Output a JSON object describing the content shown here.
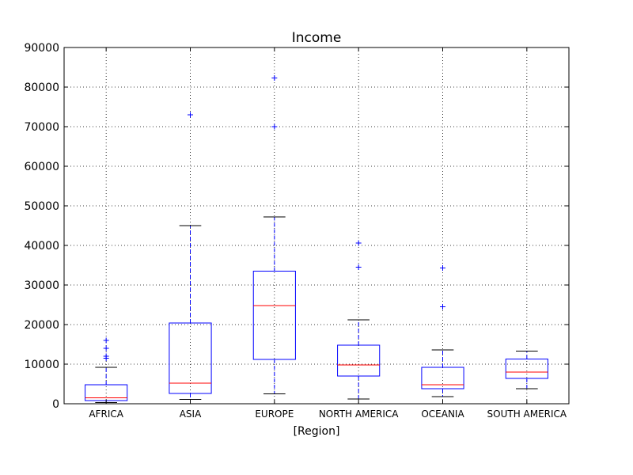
{
  "chart_data": {
    "type": "box",
    "title": "Income",
    "xlabel": "[Region]",
    "ylabel": "",
    "ylim": [
      0,
      90000
    ],
    "yticks": [
      0,
      10000,
      20000,
      30000,
      40000,
      50000,
      60000,
      70000,
      80000,
      90000
    ],
    "grid": true,
    "colors": {
      "box": "#0000ff",
      "median": "#ff0000",
      "whisker": "#0000ff",
      "cap": "#000000",
      "flier": "#0000ff",
      "grid": "#000000"
    },
    "categories": [
      "AFRICA",
      "ASIA",
      "EUROPE",
      "NORTH AMERICA",
      "OCEANIA",
      "SOUTH AMERICA"
    ],
    "boxes": [
      {
        "whislo": 300,
        "q1": 800,
        "med": 1500,
        "q3": 4800,
        "whishi": 9200,
        "fliers": [
          11500,
          12000,
          14000,
          16000
        ]
      },
      {
        "whislo": 1100,
        "q1": 2600,
        "med": 5200,
        "q3": 20400,
        "whishi": 45000,
        "fliers": [
          73000
        ]
      },
      {
        "whislo": 2500,
        "q1": 11200,
        "med": 24800,
        "q3": 33500,
        "whishi": 47200,
        "fliers": [
          70000,
          82300
        ]
      },
      {
        "whislo": 1200,
        "q1": 7000,
        "med": 9800,
        "q3": 14800,
        "whishi": 21200,
        "fliers": [
          34500,
          40600
        ]
      },
      {
        "whislo": 1800,
        "q1": 3800,
        "med": 4800,
        "q3": 9200,
        "whishi": 13600,
        "fliers": [
          24500,
          34300
        ]
      },
      {
        "whislo": 3800,
        "q1": 6400,
        "med": 8000,
        "q3": 11300,
        "whishi": 13300,
        "fliers": []
      }
    ]
  }
}
